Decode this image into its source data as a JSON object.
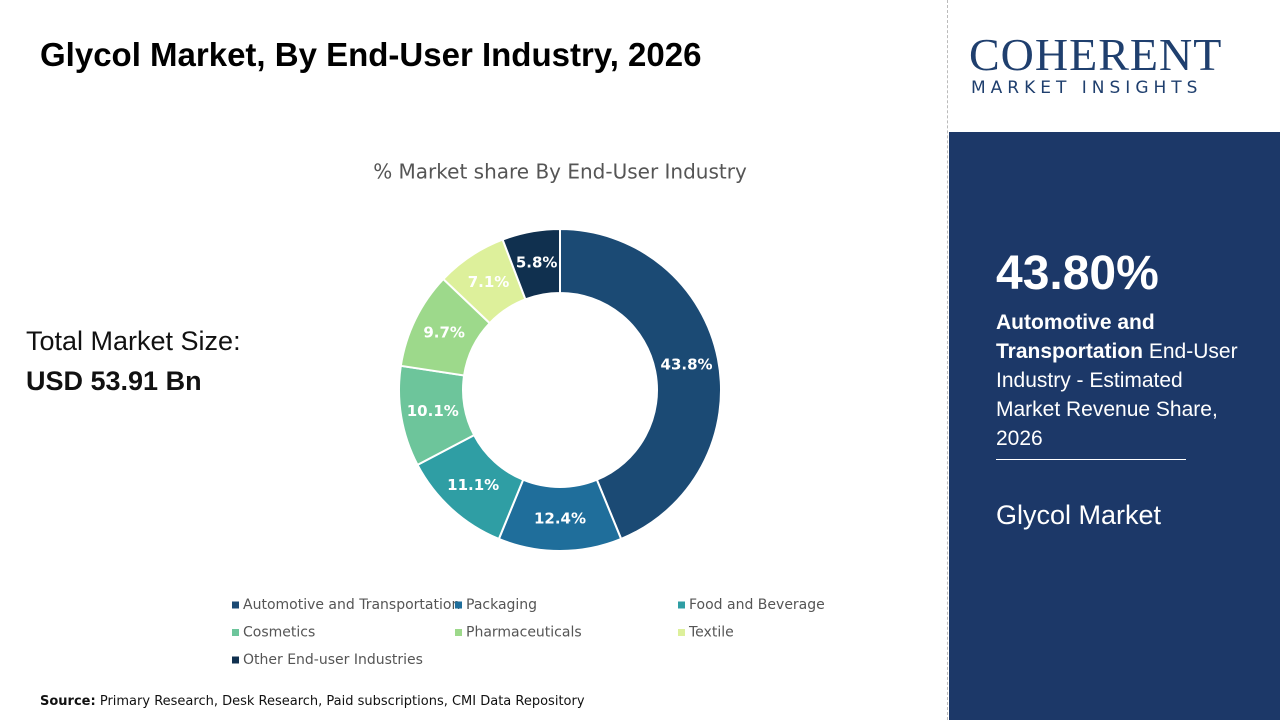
{
  "header": {
    "title": "Glycol Market, By End-User Industry, 2026"
  },
  "total": {
    "label": "Total Market Size:",
    "value": "USD 53.91 Bn"
  },
  "chart_data": {
    "type": "donut",
    "title": "% Market share By End-User Industry",
    "categories": [
      "Automotive and Transportation",
      "Packaging",
      "Food and Beverage",
      "Cosmetics",
      "Pharmaceuticals",
      "Textile",
      "Other End-user Industries"
    ],
    "values": [
      43.8,
      12.4,
      11.1,
      10.1,
      9.7,
      7.1,
      5.8
    ],
    "value_labels": [
      "43.8%",
      "12.4%",
      "11.1%",
      "10.1%",
      "9.7%",
      "7.1%",
      "5.8%"
    ],
    "colors": [
      "#1b4a74",
      "#1f6e9b",
      "#2f9ea4",
      "#6dc59b",
      "#9dd98b",
      "#ddf09b",
      "#10304f"
    ]
  },
  "source": {
    "label": "Source:",
    "text": "Primary Research, Desk Research, Paid subscriptions, CMI Data Repository"
  },
  "logo": {
    "name": "COHERENT",
    "tagline": "MARKET INSIGHTS"
  },
  "sidebar": {
    "headline": "43.80%",
    "highlight": "Automotive and Transportation",
    "description": "End-User Industry - Estimated Market Revenue Share, 2026",
    "market": "Glycol Market"
  }
}
